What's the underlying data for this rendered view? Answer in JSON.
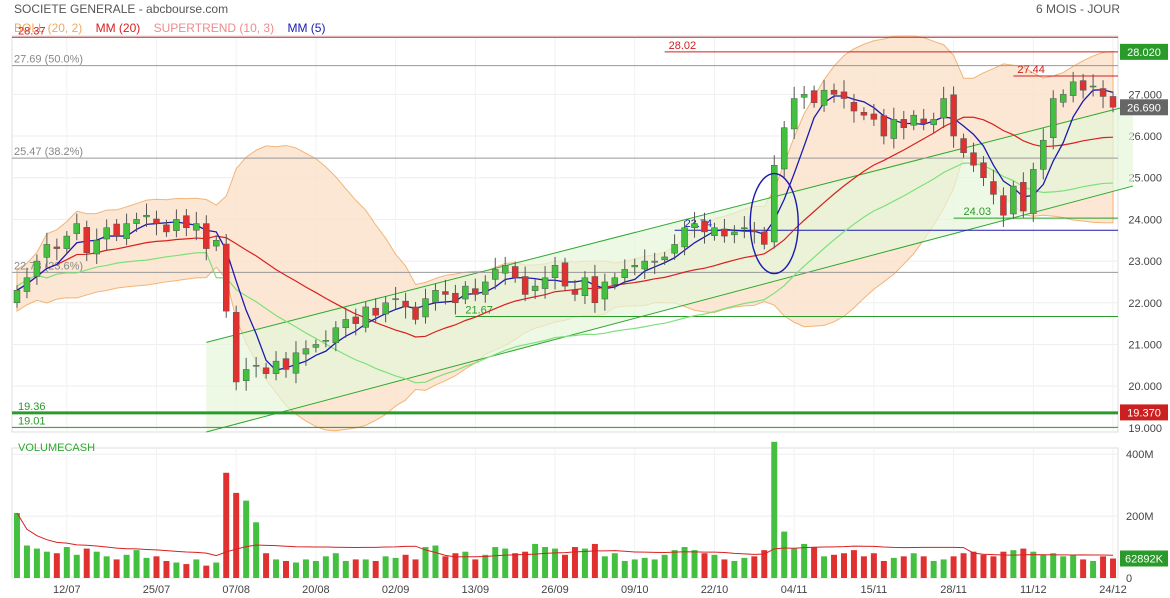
{
  "header": {
    "title": "SOCIETE GENERALE - abcbourse.com",
    "period": "6 MOIS - JOUR"
  },
  "legend": [
    {
      "label": "BOLL (20, 2)",
      "color": "#f0a860"
    },
    {
      "label": "MM (20)",
      "color": "#d92020"
    },
    {
      "label": "SUPERTREND (10, 3)",
      "color": "#f08a8a"
    },
    {
      "label": "MM (5)",
      "color": "#1a1ab0"
    }
  ],
  "colors": {
    "up": "#44c040",
    "down": "#e03030",
    "boll_fill": "#fbe3cc",
    "boll_line": "#f0a860",
    "mm20": "#d92020",
    "mm5": "#1a1ab0",
    "channel": "#2ea82e",
    "channel_fill": "#e6f6da",
    "supertrend_up": "#7ee07a",
    "supertrend_down": "#f08a8a",
    "fib": "#999999",
    "level_red": "#cc2020",
    "level_green": "#2a9a2a"
  },
  "chart_data": [
    {
      "type": "candlestick",
      "name": "price",
      "ylim": [
        18.9,
        28.4
      ],
      "yticks": [
        19,
        20,
        21,
        22,
        23,
        24,
        25,
        26,
        27
      ],
      "ytick_labels": [
        "19.000",
        "20.000",
        "21.000",
        "22.000",
        "23.000",
        "24.000",
        "25.000",
        "26.000",
        "27.000"
      ],
      "last_price_label": "26.690",
      "last_price": 26.69,
      "x_labels": [
        "12/07",
        "25/07",
        "07/08",
        "20/08",
        "02/09",
        "13/09",
        "26/09",
        "09/10",
        "22/10",
        "04/11",
        "15/11",
        "28/11",
        "11/12",
        "24/12"
      ],
      "x_label_index": [
        5,
        14,
        22,
        30,
        38,
        46,
        54,
        62,
        70,
        78,
        86,
        94,
        102,
        110
      ],
      "n_slots": 111,
      "closes": [
        22.3,
        22.6,
        23.0,
        23.4,
        23.3,
        23.6,
        23.9,
        23.2,
        23.5,
        23.8,
        23.6,
        23.9,
        24.0,
        24.1,
        23.9,
        23.7,
        24.0,
        23.8,
        23.9,
        23.3,
        23.5,
        21.8,
        20.1,
        20.4,
        20.5,
        20.3,
        20.6,
        20.4,
        20.8,
        20.9,
        21.0,
        21.1,
        21.4,
        21.6,
        21.5,
        21.9,
        21.7,
        22.0,
        22.1,
        21.9,
        21.6,
        22.1,
        22.3,
        22.2,
        22.0,
        22.4,
        22.2,
        22.5,
        22.8,
        22.9,
        22.6,
        22.2,
        22.4,
        22.6,
        22.9,
        22.4,
        22.2,
        22.6,
        22.0,
        22.5,
        22.6,
        22.8,
        22.9,
        23.0,
        23.0,
        23.1,
        23.4,
        23.8,
        23.9,
        23.7,
        23.8,
        23.6,
        23.7,
        23.8,
        23.7,
        23.4,
        25.3,
        26.2,
        26.9,
        27.0,
        26.8,
        27.1,
        27.0,
        26.9,
        26.6,
        26.5,
        26.4,
        26.0,
        26.4,
        26.2,
        26.5,
        26.3,
        26.4,
        26.9,
        26.0,
        25.6,
        25.3,
        25.0,
        24.6,
        24.1,
        24.8,
        24.2,
        25.2,
        25.9,
        26.9,
        27.0,
        27.3,
        27.1,
        27.2,
        26.95,
        26.69
      ],
      "highs_note": "derived",
      "price_levels": [
        {
          "value": 28.37,
          "label": "28.37",
          "color_key": "level_red"
        },
        {
          "value": 28.02,
          "label": "28.02",
          "color_key": "level_red"
        },
        {
          "value": 27.44,
          "label": "27.44",
          "color_key": "level_red"
        },
        {
          "value": 24.03,
          "label": "24.03",
          "color_key": "level_green"
        },
        {
          "value": 23.74,
          "label": "23.74",
          "color_key": "mm5"
        },
        {
          "value": 21.67,
          "label": "21.67",
          "color_key": "level_green"
        },
        {
          "value": 19.36,
          "label": "19.36",
          "color_key": "level_green"
        },
        {
          "value": 19.01,
          "label": "19.01",
          "color_key": "level_green"
        }
      ],
      "fib_levels": [
        {
          "value": 27.69,
          "label": "27.69  (50.0%)"
        },
        {
          "value": 25.47,
          "label": "25.47  (38.2%)"
        },
        {
          "value": 22.73,
          "label": "22.73  (23.6%)"
        }
      ],
      "right_badges": [
        {
          "value": 28.02,
          "label": "28.020",
          "color_key": "level_green"
        },
        {
          "value": 19.37,
          "label": "19.370",
          "color_key": "level_red"
        }
      ]
    },
    {
      "type": "bar",
      "name": "volume",
      "title": "VOLUMECASH",
      "ylim": [
        0,
        420
      ],
      "yticks": [
        0,
        200,
        400
      ],
      "ytick_labels": [
        "0",
        "200M",
        "400M"
      ],
      "last_value_label": "62892K",
      "values": [
        210,
        105,
        95,
        85,
        80,
        100,
        75,
        95,
        85,
        70,
        60,
        75,
        90,
        65,
        70,
        55,
        50,
        45,
        60,
        40,
        50,
        340,
        275,
        250,
        180,
        80,
        60,
        55,
        50,
        60,
        55,
        70,
        80,
        55,
        60,
        60,
        55,
        70,
        65,
        75,
        60,
        100,
        105,
        70,
        80,
        85,
        60,
        75,
        100,
        95,
        80,
        85,
        110,
        100,
        95,
        75,
        100,
        95,
        110,
        70,
        80,
        55,
        60,
        65,
        60,
        75,
        90,
        100,
        90,
        80,
        75,
        60,
        55,
        65,
        70,
        90,
        440,
        150,
        95,
        110,
        100,
        70,
        75,
        80,
        90,
        70,
        80,
        55,
        65,
        70,
        80,
        70,
        55,
        60,
        70,
        80,
        85,
        75,
        70,
        85,
        90,
        95,
        85,
        75,
        80,
        70,
        75,
        60,
        55,
        70,
        63
      ]
    }
  ]
}
